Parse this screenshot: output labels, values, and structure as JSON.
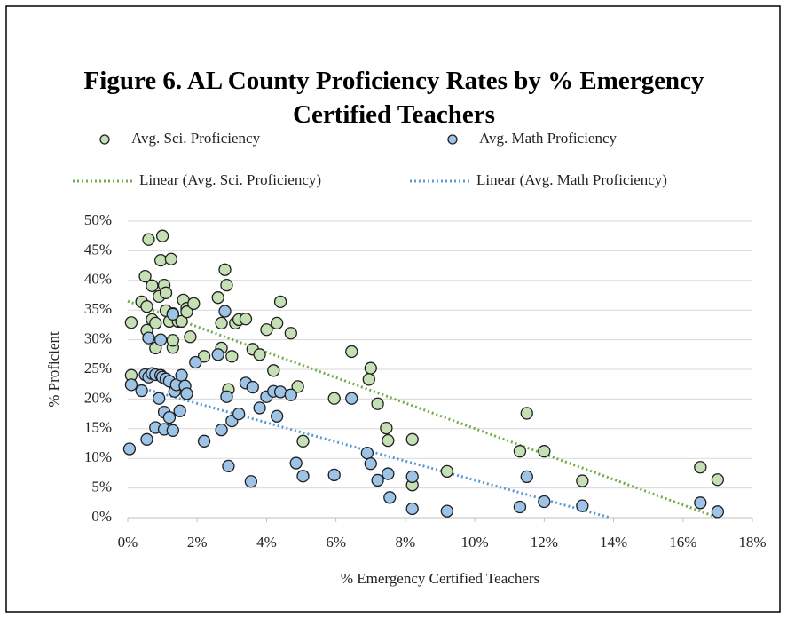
{
  "chart_data": {
    "type": "scatter",
    "title": "Figure 6. AL County Proficiency Rates by % Emergency Certified Teachers",
    "xlabel": "% Emergency Certified Teachers",
    "ylabel": "% Proficient",
    "xlim": [
      0,
      18
    ],
    "xticks": [
      {
        "value": 0,
        "label": "0%"
      },
      {
        "value": 2,
        "label": "2%"
      },
      {
        "value": 4,
        "label": "4%"
      },
      {
        "value": 6,
        "label": "6%"
      },
      {
        "value": 8,
        "label": "8%"
      },
      {
        "value": 10,
        "label": "10%"
      },
      {
        "value": 12,
        "label": "12%"
      },
      {
        "value": 14,
        "label": "14%"
      },
      {
        "value": 16,
        "label": "16%"
      },
      {
        "value": 18,
        "label": "18%"
      }
    ],
    "ylim": [
      0,
      50
    ],
    "yticks": [
      {
        "value": 0,
        "label": "0%"
      },
      {
        "value": 5,
        "label": "5%"
      },
      {
        "value": 10,
        "label": "10%"
      },
      {
        "value": 15,
        "label": "15%"
      },
      {
        "value": 20,
        "label": "20%"
      },
      {
        "value": 25,
        "label": "25%"
      },
      {
        "value": 30,
        "label": "30%"
      },
      {
        "value": 35,
        "label": "35%"
      },
      {
        "value": 40,
        "label": "40%"
      },
      {
        "value": 45,
        "label": "45%"
      },
      {
        "value": 50,
        "label": "50%"
      }
    ],
    "grid": true,
    "series": [
      {
        "name": "Avg. Sci. Proficiency",
        "color": "#c5e0b4",
        "x": [
          0.1,
          0.1,
          0.4,
          0.5,
          0.6,
          0.55,
          0.55,
          0.7,
          0.7,
          0.8,
          0.8,
          0.9,
          0.95,
          1.0,
          1.05,
          1.1,
          1.1,
          1.2,
          1.25,
          1.3,
          1.3,
          1.3,
          1.45,
          1.55,
          1.6,
          1.7,
          1.7,
          1.8,
          1.9,
          2.2,
          2.6,
          2.7,
          2.7,
          2.8,
          2.85,
          2.9,
          3.0,
          3.1,
          3.2,
          3.4,
          3.6,
          3.8,
          4.0,
          4.2,
          4.3,
          4.4,
          4.7,
          4.9,
          5.05,
          5.95,
          6.45,
          7.0,
          6.95,
          7.2,
          7.45,
          7.5,
          8.2,
          8.2,
          9.2,
          11.3,
          11.5,
          12.0,
          13.1,
          16.5,
          17.0
        ],
        "values": [
          24,
          32.9,
          36.4,
          40.7,
          46.9,
          35.6,
          31.6,
          39.1,
          33.4,
          32.8,
          28.6,
          37.3,
          43.4,
          47.5,
          39.2,
          37.9,
          34.9,
          33.1,
          43.6,
          28.7,
          29.9,
          34.4,
          33.1,
          33.1,
          36.7,
          35.3,
          34.7,
          30.5,
          36.1,
          27.2,
          37.1,
          32.8,
          28.6,
          41.8,
          39.2,
          21.6,
          27.2,
          32.8,
          33.4,
          33.5,
          28.4,
          27.5,
          31.7,
          24.8,
          32.8,
          36.4,
          31.1,
          22.1,
          12.9,
          20.1,
          28,
          25.2,
          23.3,
          19.2,
          15.1,
          13,
          13.2,
          5.5,
          7.8,
          11.2,
          17.6,
          11.2,
          6.2,
          8.5,
          6.4
        ]
      },
      {
        "name": "Avg. Math Proficiency",
        "color": "#9dc3e6",
        "x": [
          0.05,
          0.1,
          0.4,
          0.5,
          0.55,
          0.6,
          0.6,
          0.7,
          0.8,
          0.8,
          0.9,
          0.95,
          0.95,
          1.0,
          1.05,
          1.05,
          1.1,
          1.2,
          1.2,
          1.3,
          1.3,
          1.35,
          1.4,
          1.5,
          1.55,
          1.65,
          1.7,
          1.95,
          2.2,
          2.6,
          2.7,
          2.8,
          2.85,
          2.9,
          3.0,
          3.2,
          3.4,
          3.6,
          3.55,
          3.8,
          4.0,
          4.2,
          4.3,
          4.4,
          4.7,
          4.85,
          5.05,
          5.95,
          6.45,
          6.9,
          7.0,
          7.2,
          7.5,
          7.55,
          8.2,
          8.2,
          9.2,
          11.3,
          11.5,
          12.0,
          13.1,
          16.5,
          17.0
        ],
        "values": [
          11.6,
          22.4,
          21.4,
          24.1,
          13.2,
          30.3,
          23.7,
          24.3,
          24.1,
          15.2,
          20.1,
          24,
          30,
          23.7,
          17.8,
          14.9,
          23.4,
          23,
          16.9,
          34.3,
          14.7,
          21.3,
          22.4,
          18,
          24,
          22.2,
          20.9,
          26.2,
          12.9,
          27.5,
          14.8,
          34.8,
          20.4,
          8.7,
          16.3,
          17.5,
          22.7,
          22,
          6.1,
          18.5,
          20.4,
          21.3,
          17.1,
          21.2,
          20.7,
          9.2,
          7,
          7.2,
          20.1,
          10.9,
          9.1,
          6.3,
          7.4,
          3.4,
          6.9,
          1.5,
          1.1,
          1.8,
          6.9,
          2.7,
          2,
          2.5,
          1
        ]
      }
    ],
    "trendlines": [
      {
        "name": "Linear (Avg. Sci. Proficiency)",
        "color": "#70ad47",
        "x": [
          0,
          17
        ],
        "values": [
          36.5,
          0
        ]
      },
      {
        "name": "Linear (Avg. Math Proficiency)",
        "color": "#5b9bd5",
        "x": [
          0,
          13.9
        ],
        "values": [
          22.5,
          0
        ]
      }
    ]
  }
}
